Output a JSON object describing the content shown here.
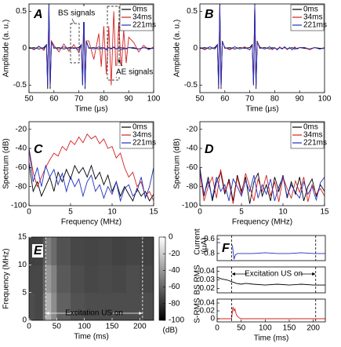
{
  "chart_data": [
    {
      "type": "line",
      "panel": "A",
      "xlabel": "Time (μs)",
      "ylabel": "Amplitude (a. u.)",
      "xlim": [
        50,
        100
      ],
      "xticks": [
        50,
        60,
        70,
        80,
        90,
        100
      ],
      "ylim": [
        -0.6,
        0.6
      ],
      "yticks": [
        0.5,
        0,
        -0.5
      ],
      "legend": "upper right",
      "x": [
        50,
        52,
        54,
        56,
        57,
        57.5,
        58,
        58.5,
        59,
        60,
        62,
        64,
        66,
        68,
        70,
        71,
        71.5,
        72,
        72.5,
        73,
        74,
        76,
        78,
        79,
        80,
        81,
        82,
        83,
        84,
        85,
        86,
        87,
        88,
        89,
        90,
        92,
        94,
        96,
        98,
        100
      ],
      "annotations": [
        "BS signals",
        "AE signals"
      ],
      "series": [
        {
          "name": "0ms",
          "color": "#000000",
          "values": [
            0,
            0.01,
            -0.01,
            0.01,
            0.05,
            -0.55,
            0.6,
            -0.55,
            0.1,
            0,
            0.01,
            -0.01,
            0.01,
            0,
            0.01,
            0.05,
            -0.5,
            0.6,
            -0.55,
            0.1,
            0,
            0.01,
            -0.01,
            0.01,
            0,
            -0.01,
            0.01,
            0,
            0.01,
            -0.01,
            0,
            0.01,
            -0.01,
            0,
            0.01,
            0,
            -0.01,
            0.01,
            0,
            0
          ]
        },
        {
          "name": "34ms",
          "color": "#d62020",
          "values": [
            0.02,
            -0.02,
            0.03,
            -0.03,
            0.05,
            -0.5,
            0.55,
            -0.5,
            0.1,
            0.04,
            -0.05,
            0.06,
            -0.04,
            0.05,
            -0.06,
            0.05,
            -0.45,
            0.55,
            -0.5,
            0.1,
            0.1,
            -0.15,
            0.2,
            -0.25,
            0.3,
            -0.35,
            0.3,
            -0.5,
            0.5,
            -0.4,
            0.35,
            -0.3,
            0.25,
            -0.2,
            0.15,
            0.08,
            -0.05,
            0.04,
            -0.02,
            0.02
          ]
        },
        {
          "name": "221ms",
          "color": "#2030c0",
          "values": [
            0.01,
            -0.01,
            0.02,
            -0.01,
            0.04,
            -0.5,
            0.58,
            -0.52,
            0.08,
            0.01,
            -0.01,
            0.02,
            -0.01,
            0.01,
            -0.02,
            0.04,
            -0.5,
            0.58,
            -0.52,
            0.08,
            0.01,
            -0.01,
            0.02,
            -0.01,
            0.01,
            -0.02,
            0.01,
            -0.01,
            0.02,
            -0.01,
            0.01,
            -0.02,
            0.01,
            -0.01,
            0.01,
            0.01,
            -0.01,
            0.01,
            -0.01,
            0
          ]
        }
      ]
    },
    {
      "type": "line",
      "panel": "B",
      "xlabel": "Time (μs)",
      "ylabel": "Amplitude (a. u.)",
      "xlim": [
        50,
        100
      ],
      "xticks": [
        50,
        60,
        70,
        80,
        90,
        100
      ],
      "ylim": [
        -0.6,
        0.6
      ],
      "yticks": [
        0.5,
        0,
        -0.5
      ],
      "legend": "upper right",
      "x": [
        50,
        52,
        54,
        56,
        57,
        57.5,
        58,
        58.5,
        59,
        60,
        62,
        64,
        66,
        68,
        70,
        71,
        71.5,
        72,
        72.5,
        73,
        74,
        76,
        78,
        79,
        80,
        81,
        82,
        83,
        84,
        85,
        86,
        87,
        88,
        89,
        90,
        92,
        94,
        96,
        98,
        100
      ],
      "series": [
        {
          "name": "0ms",
          "color": "#000000",
          "values": [
            0,
            0.01,
            -0.01,
            0.01,
            0.05,
            -0.55,
            0.6,
            -0.55,
            0.1,
            0,
            0.01,
            -0.01,
            0.01,
            0,
            0.01,
            0.05,
            -0.5,
            0.6,
            -0.55,
            0.1,
            0,
            0.01,
            -0.01,
            0.01,
            0,
            -0.01,
            0.01,
            0,
            0.01,
            -0.01,
            0,
            0.01,
            -0.01,
            0,
            0.01,
            0,
            -0.01,
            0.01,
            0,
            0
          ]
        },
        {
          "name": "34ms",
          "color": "#d62020",
          "values": [
            0.01,
            -0.02,
            0.02,
            -0.01,
            0.04,
            -0.52,
            0.57,
            -0.53,
            0.09,
            0.01,
            -0.02,
            0.02,
            -0.01,
            0.02,
            -0.02,
            0.04,
            -0.48,
            0.58,
            -0.53,
            0.09,
            0.02,
            -0.01,
            0.02,
            -0.02,
            0.01,
            -0.02,
            0.02,
            -0.01,
            0.02,
            -0.02,
            0.01,
            -0.02,
            0.02,
            -0.01,
            0.01,
            0.01,
            -0.02,
            0.01,
            -0.01,
            0.01
          ]
        },
        {
          "name": "221ms",
          "color": "#2030c0",
          "values": [
            0.01,
            -0.01,
            0.02,
            -0.01,
            0.04,
            -0.5,
            0.58,
            -0.52,
            0.08,
            0.01,
            -0.01,
            0.02,
            -0.01,
            0.01,
            -0.02,
            0.04,
            -0.5,
            0.58,
            -0.52,
            0.08,
            0.01,
            -0.01,
            0.02,
            -0.01,
            0.01,
            -0.02,
            0.01,
            -0.01,
            0.02,
            -0.01,
            0.01,
            -0.02,
            0.01,
            -0.01,
            0.01,
            0.01,
            -0.01,
            0.01,
            -0.01,
            0
          ]
        }
      ]
    },
    {
      "type": "line",
      "panel": "C",
      "xlabel": "Frequency (MHz)",
      "ylabel": "Spectrum (dB)",
      "xlim": [
        0,
        15
      ],
      "xticks": [
        0,
        5,
        10,
        15
      ],
      "ylim": [
        -100,
        -12
      ],
      "yticks": [
        -20,
        -40,
        -60,
        -80,
        -100
      ],
      "legend": "upper right",
      "x": [
        0,
        0.5,
        1,
        1.5,
        2,
        2.5,
        3,
        3.5,
        4,
        4.5,
        5,
        5.5,
        6,
        6.5,
        7,
        7.5,
        8,
        8.5,
        9,
        9.5,
        10,
        10.5,
        11,
        11.5,
        12,
        12.5,
        13,
        13.5,
        14,
        14.5,
        15
      ],
      "series": [
        {
          "name": "0ms",
          "color": "#000000",
          "values": [
            -55,
            -85,
            -75,
            -90,
            -80,
            -70,
            -85,
            -65,
            -75,
            -62,
            -72,
            -58,
            -66,
            -60,
            -70,
            -58,
            -72,
            -65,
            -78,
            -68,
            -85,
            -75,
            -90,
            -80,
            -88,
            -95,
            -82,
            -90,
            -85,
            -95,
            -88
          ]
        },
        {
          "name": "34ms",
          "color": "#d62020",
          "values": [
            -40,
            -65,
            -80,
            -70,
            -60,
            -52,
            -45,
            -48,
            -38,
            -42,
            -32,
            -36,
            -28,
            -34,
            -25,
            -30,
            -27,
            -35,
            -30,
            -40,
            -38,
            -50,
            -45,
            -60,
            -70,
            -65,
            -80,
            -75,
            -90,
            -85,
            -95
          ]
        },
        {
          "name": "221ms",
          "color": "#2030c0",
          "values": [
            -40,
            -75,
            -60,
            -80,
            -58,
            -70,
            -62,
            -78,
            -66,
            -85,
            -70,
            -80,
            -72,
            -90,
            -75,
            -68,
            -85,
            -78,
            -92,
            -80,
            -88,
            -75,
            -95,
            -82,
            -78,
            -90,
            -85,
            -70,
            -92,
            -80,
            -60
          ]
        }
      ]
    },
    {
      "type": "line",
      "panel": "D",
      "xlabel": "Frequency (MHz)",
      "ylabel": "Spectrum (dB)",
      "xlim": [
        0,
        15
      ],
      "xticks": [
        0,
        5,
        10,
        15
      ],
      "ylim": [
        -100,
        -12
      ],
      "yticks": [
        -20,
        -40,
        -60,
        -80,
        -100
      ],
      "legend": "upper right",
      "x": [
        0,
        0.5,
        1,
        1.5,
        2,
        2.5,
        3,
        3.5,
        4,
        4.5,
        5,
        5.5,
        6,
        6.5,
        7,
        7.5,
        8,
        8.5,
        9,
        9.5,
        10,
        10.5,
        11,
        11.5,
        12,
        12.5,
        13,
        13.5,
        14,
        14.5,
        15
      ],
      "series": [
        {
          "name": "0ms",
          "color": "#000000",
          "values": [
            -60,
            -90,
            -70,
            -95,
            -75,
            -65,
            -88,
            -72,
            -95,
            -68,
            -85,
            -70,
            -98,
            -75,
            -66,
            -90,
            -78,
            -95,
            -70,
            -85,
            -68,
            -92,
            -75,
            -88,
            -70,
            -95,
            -80,
            -72,
            -90,
            -78,
            -85
          ]
        },
        {
          "name": "34ms",
          "color": "#d62020",
          "values": [
            -65,
            -95,
            -80,
            -70,
            -92,
            -62,
            -85,
            -75,
            -98,
            -70,
            -88,
            -66,
            -80,
            -95,
            -72,
            -85,
            -68,
            -90,
            -75,
            -96,
            -70,
            -82,
            -92,
            -74,
            -86,
            -70,
            -96,
            -78,
            -88,
            -82,
            -90
          ]
        },
        {
          "name": "221ms",
          "color": "#2030c0",
          "values": [
            -62,
            -88,
            -75,
            -92,
            -70,
            -85,
            -78,
            -95,
            -72,
            -80,
            -90,
            -74,
            -85,
            -68,
            -92,
            -78,
            -88,
            -72,
            -95,
            -80,
            -70,
            -90,
            -78,
            -86,
            -92,
            -75,
            -88,
            -80,
            -94,
            -76,
            -70
          ]
        }
      ]
    },
    {
      "type": "heatmap",
      "panel": "E",
      "xlabel": "Time (ms)",
      "ylabel": "Frequency (MHz)",
      "xlim": [
        0,
        225
      ],
      "xticks": [
        0,
        50,
        100,
        150,
        200
      ],
      "ylim": [
        0,
        15
      ],
      "yticks": [
        0,
        5,
        10,
        15
      ],
      "x_bins": [
        0,
        10,
        25,
        30,
        40,
        50,
        75,
        100,
        125,
        150,
        175,
        200,
        225
      ],
      "y_bins": [
        0,
        5,
        10,
        15
      ],
      "z": [
        [
          -70,
          -72,
          -55,
          -30,
          -45,
          -62,
          -68,
          -70,
          -70,
          -70,
          -70,
          -70
        ],
        [
          -72,
          -72,
          -60,
          -40,
          -50,
          -65,
          -70,
          -72,
          -71,
          -72,
          -70,
          -72
        ],
        [
          -75,
          -74,
          -65,
          -50,
          -58,
          -68,
          -72,
          -73,
          -72,
          -74,
          -73,
          -74
        ]
      ],
      "zlim": [
        -100,
        0
      ],
      "zticks": [
        0,
        -20,
        -40,
        -60,
        -80,
        -100
      ],
      "colorbar_label": "(dB)",
      "vlines": [
        30,
        205
      ],
      "annotations": [
        "Excitation US on"
      ]
    },
    {
      "type": "line",
      "panel": "F",
      "ylabel": "Current",
      "yunit": "(μA)",
      "xlim": [
        0,
        225
      ],
      "ylim": [
        -0.9,
        -0.55
      ],
      "yticks": [
        -0.6,
        -0.8
      ],
      "vlines": [
        30,
        205
      ],
      "x": [
        0,
        10,
        20,
        28,
        32,
        35,
        38,
        42,
        50,
        75,
        100,
        125,
        150,
        175,
        200,
        225
      ],
      "series": [
        {
          "color": "#2030c0",
          "values": [
            -0.65,
            -0.65,
            -0.65,
            -0.65,
            -0.7,
            -0.88,
            -0.82,
            -0.8,
            -0.8,
            -0.8,
            -0.79,
            -0.8,
            -0.8,
            -0.79,
            -0.8,
            -0.8
          ]
        }
      ]
    },
    {
      "type": "line",
      "ylabel": "BS RMS",
      "xlim": [
        0,
        225
      ],
      "ylim": [
        0.015,
        0.045
      ],
      "yticks": [
        0.02,
        0.03,
        0.04
      ],
      "vlines": [
        30,
        205
      ],
      "annotations": [
        "Excitation US on"
      ],
      "x": [
        0,
        10,
        20,
        30,
        35,
        40,
        50,
        60,
        75,
        100,
        125,
        150,
        175,
        200,
        225
      ],
      "series": [
        {
          "color": "#000000",
          "values": [
            0.033,
            0.031,
            0.03,
            0.028,
            0.027,
            0.026,
            0.025,
            0.026,
            0.025,
            0.024,
            0.025,
            0.024,
            0.025,
            0.024,
            0.024
          ]
        }
      ]
    },
    {
      "type": "line",
      "ylabel": "S-RMS",
      "xlabel": "Time (ms)",
      "xlim": [
        0,
        225
      ],
      "xticks": [
        0,
        50,
        100,
        150,
        200
      ],
      "ylim": [
        -0.008,
        0.05
      ],
      "yticks": [
        0,
        0.02,
        0.04
      ],
      "vlines": [
        30,
        205
      ],
      "x": [
        0,
        10,
        20,
        30,
        33,
        35,
        37,
        40,
        45,
        50,
        75,
        100,
        150,
        200,
        225
      ],
      "series": [
        {
          "color": "#d62020",
          "values": [
            0,
            0,
            0,
            0,
            0.03,
            0.02,
            0.025,
            0.01,
            0.003,
            0,
            0,
            0,
            0,
            0,
            0
          ]
        }
      ]
    }
  ]
}
